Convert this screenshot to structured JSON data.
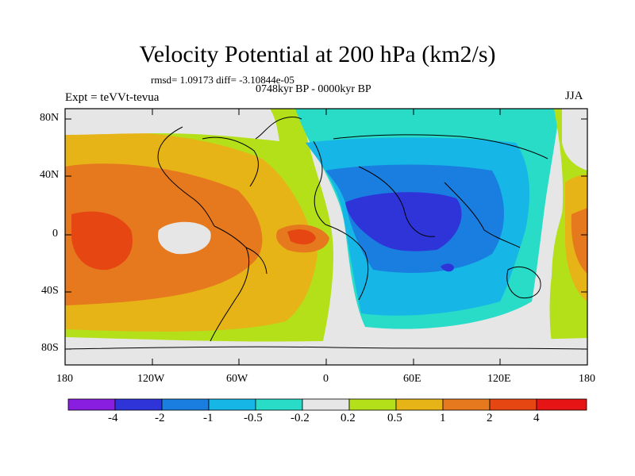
{
  "map": {
    "title": "Velocity Potential at 200 hPa (km2/s)",
    "stats": "rmsd= 1.09173 diff= -3.10844e-05",
    "period": "0748kyr BP - 0000kyr BP",
    "experiment": "Expt = teVVt-tevua",
    "season": "JJA",
    "lat_labels": [
      "80N",
      "40N",
      "0",
      "40S",
      "80S"
    ],
    "lon_labels": [
      "180",
      "120W",
      "60W",
      "0",
      "60E",
      "120E",
      "180"
    ]
  },
  "colorbar": {
    "labels": [
      "-4",
      "-2",
      "-1",
      "-0.5",
      "-0.2",
      "0.2",
      "0.5",
      "1",
      "2",
      "4"
    ],
    "colors": [
      "#8a1ee0",
      "#2e34d8",
      "#1a7ee0",
      "#16b6e6",
      "#28dcc8",
      "#e6e6e6",
      "#b4e01a",
      "#e6b416",
      "#e6781e",
      "#e64612",
      "#e61414"
    ]
  }
}
